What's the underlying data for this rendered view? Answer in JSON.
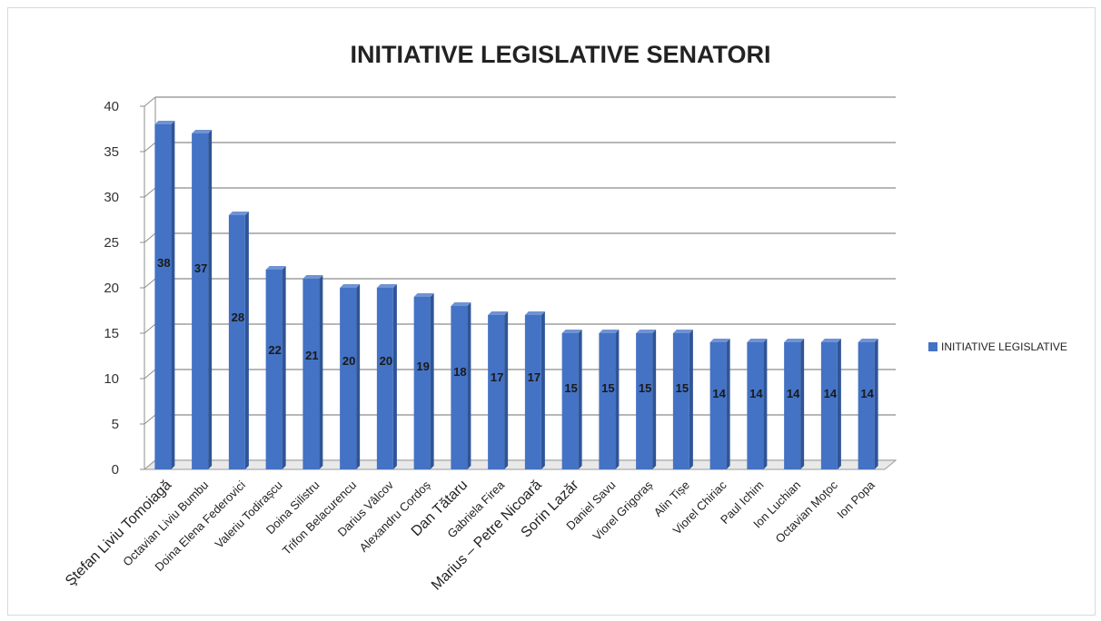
{
  "chart_data": {
    "type": "bar",
    "title": "INITIATIVE LEGISLATIVE SENATORI",
    "xlabel": "",
    "ylabel": "",
    "ylim": [
      0,
      40
    ],
    "yticks": [
      0,
      5,
      10,
      15,
      20,
      25,
      30,
      35,
      40
    ],
    "grid": true,
    "legend_position": "right",
    "categories": [
      "Ştefan Liviu Tomoiagă",
      "Octavian Liviu Bumbu",
      "Doina Elena Federovici",
      "Valeriu Todirașcu",
      "Doina Silistru",
      "Trifon Belacurencu",
      "Darius Vâlcov",
      "Alexandru Cordoș",
      "Dan Tătaru",
      "Gabriela Firea",
      "Marius – Petre Nicoară",
      "Sorin Lazăr",
      "Daniel Savu",
      "Viorel Grigoraș",
      "Alin Tișe",
      "Viorel Chiriac",
      "Paul Ichim",
      "Ion Luchian",
      "Octavian Moțoc",
      "Ion Popa"
    ],
    "series": [
      {
        "name": "INITIATIVE LEGISLATIVE",
        "color": "#4472c4",
        "values": [
          38,
          37,
          28,
          22,
          21,
          20,
          20,
          19,
          18,
          17,
          17,
          15,
          15,
          15,
          15,
          14,
          14,
          14,
          14,
          14
        ]
      }
    ]
  }
}
